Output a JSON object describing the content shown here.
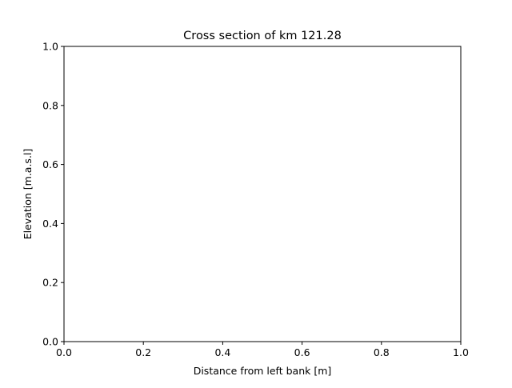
{
  "chart_data": {
    "type": "line",
    "title": "Cross section of km 121.28",
    "xlabel": "Distance from left bank [m]",
    "ylabel": "Elevation [m.a.s.l]",
    "xlim": [
      0.0,
      1.0
    ],
    "ylim": [
      0.0,
      1.0
    ],
    "xticks": [
      "0.0",
      "0.2",
      "0.4",
      "0.6",
      "0.8",
      "1.0"
    ],
    "yticks": [
      "0.0",
      "0.2",
      "0.4",
      "0.6",
      "0.8",
      "1.0"
    ],
    "grid": false,
    "series": []
  }
}
